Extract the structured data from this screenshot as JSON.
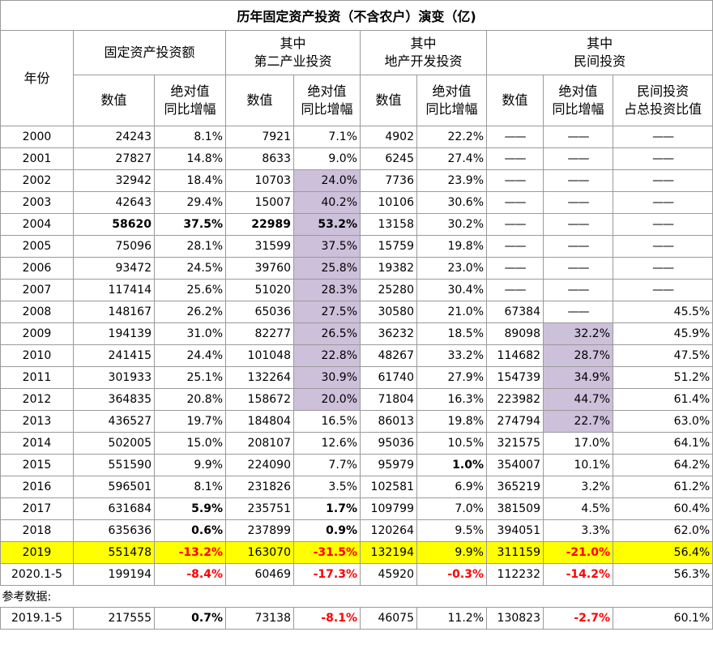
{
  "title": "历年固定资产投资（不含农户）演变（亿)",
  "headers": {
    "year": "年份",
    "groups": [
      {
        "line1": "固定资产投资额",
        "line2": ""
      },
      {
        "line1": "其中",
        "line2": "第二产业投资"
      },
      {
        "line1": "其中",
        "line2": "地产开发投资"
      },
      {
        "line1": "其中",
        "line2": "民间投资"
      }
    ],
    "sub": {
      "value": "数值",
      "growth_l1": "绝对值",
      "growth_l2": "同比增幅",
      "ratio_l1": "民间投资",
      "ratio_l2": "占总投资比值"
    }
  },
  "rows": [
    {
      "year": "2000",
      "fa": "24243",
      "fa_g": "8.1%",
      "sec": "7921",
      "sec_g": "7.1%",
      "re": "4902",
      "re_g": "22.2%",
      "pv": "——",
      "pv_g": "——",
      "ratio": "——"
    },
    {
      "year": "2001",
      "fa": "27827",
      "fa_g": "14.8%",
      "sec": "8633",
      "sec_g": "9.0%",
      "re": "6245",
      "re_g": "27.4%",
      "pv": "——",
      "pv_g": "——",
      "ratio": "——"
    },
    {
      "year": "2002",
      "fa": "32942",
      "fa_g": "18.4%",
      "sec": "10703",
      "sec_g": "24.0%",
      "re": "7736",
      "re_g": "23.9%",
      "pv": "——",
      "pv_g": "——",
      "ratio": "——"
    },
    {
      "year": "2003",
      "fa": "42643",
      "fa_g": "29.4%",
      "sec": "15007",
      "sec_g": "40.2%",
      "re": "10106",
      "re_g": "30.6%",
      "pv": "——",
      "pv_g": "——",
      "ratio": "——"
    },
    {
      "year": "2004",
      "fa": "58620",
      "fa_g": "37.5%",
      "sec": "22989",
      "sec_g": "53.2%",
      "re": "13158",
      "re_g": "30.2%",
      "pv": "——",
      "pv_g": "——",
      "ratio": "——"
    },
    {
      "year": "2005",
      "fa": "75096",
      "fa_g": "28.1%",
      "sec": "31599",
      "sec_g": "37.5%",
      "re": "15759",
      "re_g": "19.8%",
      "pv": "——",
      "pv_g": "——",
      "ratio": "——"
    },
    {
      "year": "2006",
      "fa": "93472",
      "fa_g": "24.5%",
      "sec": "39760",
      "sec_g": "25.8%",
      "re": "19382",
      "re_g": "23.0%",
      "pv": "——",
      "pv_g": "——",
      "ratio": "——"
    },
    {
      "year": "2007",
      "fa": "117414",
      "fa_g": "25.6%",
      "sec": "51020",
      "sec_g": "28.3%",
      "re": "25280",
      "re_g": "30.4%",
      "pv": "——",
      "pv_g": "——",
      "ratio": "——"
    },
    {
      "year": "2008",
      "fa": "148167",
      "fa_g": "26.2%",
      "sec": "65036",
      "sec_g": "27.5%",
      "re": "30580",
      "re_g": "21.0%",
      "pv": "67384",
      "pv_g": "——",
      "ratio": "45.5%"
    },
    {
      "year": "2009",
      "fa": "194139",
      "fa_g": "31.0%",
      "sec": "82277",
      "sec_g": "26.5%",
      "re": "36232",
      "re_g": "18.5%",
      "pv": "89098",
      "pv_g": "32.2%",
      "ratio": "45.9%"
    },
    {
      "year": "2010",
      "fa": "241415",
      "fa_g": "24.4%",
      "sec": "101048",
      "sec_g": "22.8%",
      "re": "48267",
      "re_g": "33.2%",
      "pv": "114682",
      "pv_g": "28.7%",
      "ratio": "47.5%"
    },
    {
      "year": "2011",
      "fa": "301933",
      "fa_g": "25.1%",
      "sec": "132264",
      "sec_g": "30.9%",
      "re": "61740",
      "re_g": "27.9%",
      "pv": "154739",
      "pv_g": "34.9%",
      "ratio": "51.2%"
    },
    {
      "year": "2012",
      "fa": "364835",
      "fa_g": "20.8%",
      "sec": "158672",
      "sec_g": "20.0%",
      "re": "71804",
      "re_g": "16.3%",
      "pv": "223982",
      "pv_g": "44.7%",
      "ratio": "61.4%"
    },
    {
      "year": "2013",
      "fa": "436527",
      "fa_g": "19.7%",
      "sec": "184804",
      "sec_g": "16.5%",
      "re": "86013",
      "re_g": "19.8%",
      "pv": "274794",
      "pv_g": "22.7%",
      "ratio": "63.0%"
    },
    {
      "year": "2014",
      "fa": "502005",
      "fa_g": "15.0%",
      "sec": "208107",
      "sec_g": "12.6%",
      "re": "95036",
      "re_g": "10.5%",
      "pv": "321575",
      "pv_g": "17.0%",
      "ratio": "64.1%"
    },
    {
      "year": "2015",
      "fa": "551590",
      "fa_g": "9.9%",
      "sec": "224090",
      "sec_g": "7.7%",
      "re": "95979",
      "re_g": "1.0%",
      "pv": "354007",
      "pv_g": "10.1%",
      "ratio": "64.2%"
    },
    {
      "year": "2016",
      "fa": "596501",
      "fa_g": "8.1%",
      "sec": "231826",
      "sec_g": "3.5%",
      "re": "102581",
      "re_g": "6.9%",
      "pv": "365219",
      "pv_g": "3.2%",
      "ratio": "61.2%"
    },
    {
      "year": "2017",
      "fa": "631684",
      "fa_g": "5.9%",
      "sec": "235751",
      "sec_g": "1.7%",
      "re": "109799",
      "re_g": "7.0%",
      "pv": "381509",
      "pv_g": "4.5%",
      "ratio": "60.4%"
    },
    {
      "year": "2018",
      "fa": "635636",
      "fa_g": "0.6%",
      "sec": "237899",
      "sec_g": "0.9%",
      "re": "120264",
      "re_g": "9.5%",
      "pv": "394051",
      "pv_g": "3.3%",
      "ratio": "62.0%"
    },
    {
      "year": "2019",
      "fa": "551478",
      "fa_g": "-13.2%",
      "sec": "163070",
      "sec_g": "-31.5%",
      "re": "132194",
      "re_g": "9.9%",
      "pv": "311159",
      "pv_g": "-21.0%",
      "ratio": "56.4%"
    },
    {
      "year": "2020.1-5",
      "fa": "199194",
      "fa_g": "-8.4%",
      "sec": "60469",
      "sec_g": "-17.3%",
      "re": "45920",
      "re_g": "-0.3%",
      "pv": "112232",
      "pv_g": "-14.2%",
      "ratio": "56.3%"
    }
  ],
  "reference": {
    "label": "参考数据:",
    "row": {
      "year": "2019.1-5",
      "fa": "217555",
      "fa_g": "0.7%",
      "sec": "73138",
      "sec_g": "-8.1%",
      "re": "46075",
      "re_g": "11.2%",
      "pv": "130823",
      "pv_g": "-2.7%",
      "ratio": "60.1%"
    }
  },
  "colors": {
    "highlight_yellow": "#ffff00",
    "highlight_purple": "#ccc0da",
    "negative_red": "#ff0000"
  }
}
